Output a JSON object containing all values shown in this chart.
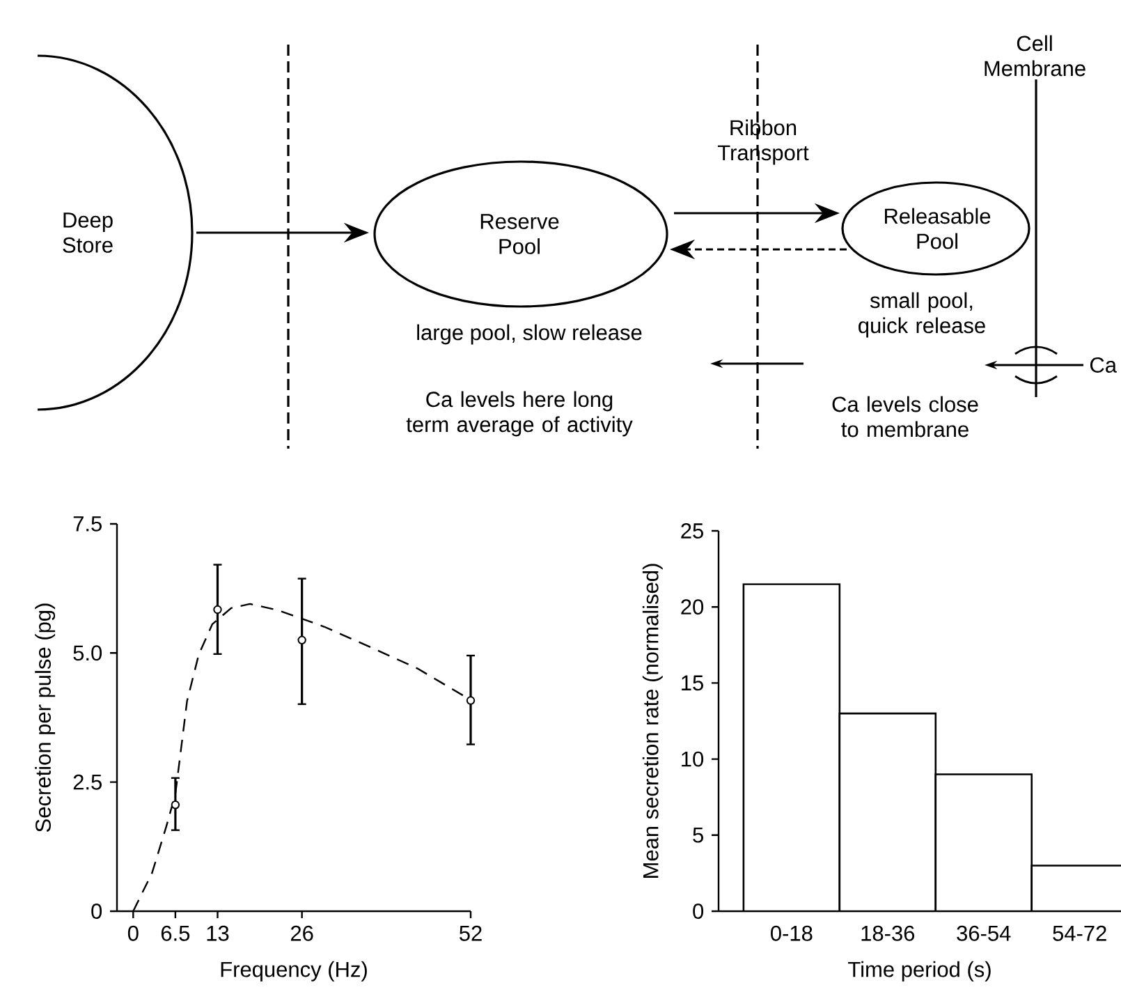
{
  "chart_data": [
    {
      "type": "other",
      "annotations": [
        "Deep Store",
        "Reserve Pool",
        "Ribbon Transport",
        "Releasable Pool",
        "Cell Membrane",
        "large pool, slow release",
        "small pool, quick release",
        "Ca levels here long term average of activity",
        "Ca levels close to membrane",
        "Ca"
      ]
    },
    {
      "type": "scatter",
      "xlabel": "Frequency (Hz)",
      "ylabel": "Secretion per pulse (pg)",
      "xlim": [
        -2.5,
        52
      ],
      "ylim": [
        0,
        7.5
      ],
      "xticks": [
        0,
        6.5,
        13,
        26,
        52
      ],
      "yticks": [
        0,
        2.5,
        {
          "value": 5,
          "label": "5.0"
        },
        7.5
      ],
      "series": [
        {
          "type": "scatter",
          "color": "#000000",
          "marker": "circle",
          "x": [
            6.5,
            13,
            26,
            52
          ],
          "values": [
            2.06,
            5.84,
            5.25,
            4.08
          ],
          "errors": [
            [
              1.57,
              2.58
            ],
            [
              4.98,
              6.71
            ],
            [
              4.01,
              6.44
            ],
            [
              3.23,
              4.95
            ]
          ]
        },
        {
          "type": "line",
          "color": "#000000",
          "marker": "none",
          "line_style": "dashed",
          "x": [
            0,
            2.9,
            5.1,
            6.5,
            8.3,
            10.1,
            12.2,
            15.1,
            18,
            22.3,
            29.4,
            36.6,
            43.8,
            51.6
          ],
          "values": [
            0,
            0.74,
            1.64,
            2.27,
            4.07,
            4.97,
            5.56,
            5.87,
            5.95,
            5.83,
            5.51,
            5.11,
            4.7,
            4.12
          ]
        }
      ]
    },
    {
      "type": "bar",
      "xlabel": "Time period (s)",
      "ylabel": "Mean secretion rate (normalised)",
      "categories": [
        "0-18",
        "18-36",
        "36-54",
        "54-72"
      ],
      "values": [
        21.5,
        13,
        9,
        3
      ],
      "color": "#ffffff",
      "ylim": [
        0,
        25
      ],
      "yticks": [
        0,
        5,
        10,
        15,
        20,
        25
      ]
    }
  ]
}
